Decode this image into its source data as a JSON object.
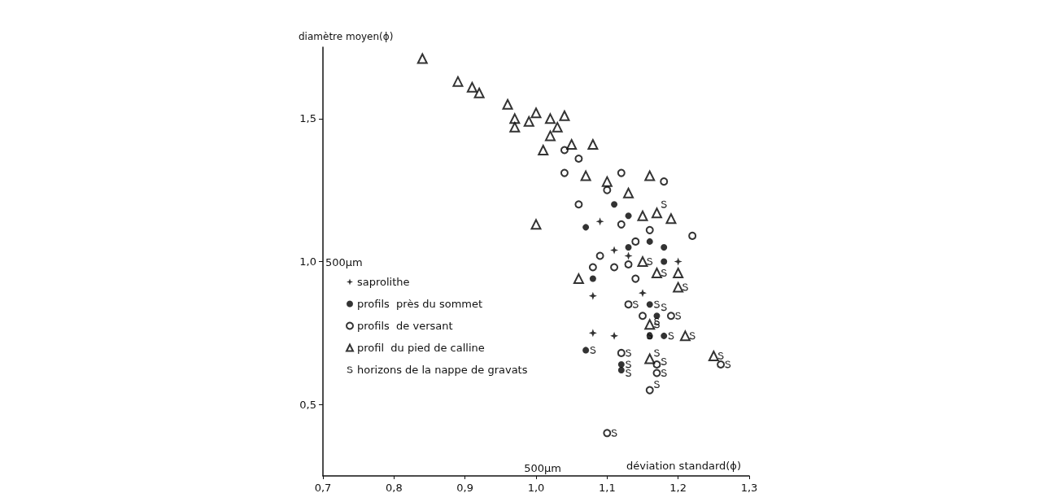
{
  "chart_data": {
    "type": "scatter",
    "xlabel": "déviation standard(ϕ)",
    "ylabel": "diamètre moyen(ϕ)",
    "xlim": [
      0.7,
      1.3
    ],
    "ylim": [
      0.25,
      1.75
    ],
    "xticks": [
      {
        "value": 0.7,
        "label": "0,7"
      },
      {
        "value": 0.8,
        "label": "0,8"
      },
      {
        "value": 0.9,
        "label": "0,9"
      },
      {
        "value": 1.0,
        "label": "1,0"
      },
      {
        "value": 1.1,
        "label": "1,1"
      },
      {
        "value": 1.2,
        "label": "1,2"
      },
      {
        "value": 1.3,
        "label": "1,3"
      }
    ],
    "yticks": [
      {
        "value": 0.5,
        "label": "0,5"
      },
      {
        "value": 1.0,
        "label": "1,0"
      },
      {
        "value": 1.5,
        "label": "1,5"
      }
    ],
    "annotations": [
      "500µm",
      "500µm"
    ],
    "grid": false,
    "legend": "left",
    "series": [
      {
        "name": "saprolithe",
        "color": "#000000",
        "marker": "star",
        "x": [
          1.09,
          1.11,
          1.13,
          1.2,
          1.15,
          1.08,
          1.08,
          1.11
        ],
        "values": [
          1.14,
          1.04,
          1.02,
          1.0,
          0.89,
          0.88,
          0.75,
          0.74
        ]
      },
      {
        "name": "profils  près du sommet",
        "color": "#000000",
        "marker": "circle",
        "x": [
          1.07,
          1.11,
          1.13,
          1.13,
          1.16,
          1.18,
          1.18,
          1.08,
          1.16,
          1.17,
          1.16,
          1.18,
          1.07,
          1.12,
          1.12
        ],
        "values": [
          1.12,
          1.2,
          1.16,
          1.05,
          1.07,
          1.05,
          1.0,
          0.94,
          0.85,
          0.81,
          0.74,
          0.74,
          0.69,
          0.64,
          0.62
        ]
      },
      {
        "name": "profils  de versant",
        "color": "#000000",
        "marker": "open-circle",
        "x": [
          1.04,
          1.06,
          1.04,
          1.06,
          1.12,
          1.1,
          1.18,
          1.12,
          1.16,
          1.22,
          1.14,
          1.09,
          1.08,
          1.11,
          1.13,
          1.14,
          1.13,
          1.19,
          1.15,
          1.12,
          1.17,
          1.17,
          1.16,
          1.26,
          1.1
        ],
        "values": [
          1.39,
          1.36,
          1.31,
          1.2,
          1.31,
          1.25,
          1.28,
          1.13,
          1.11,
          1.09,
          1.07,
          1.02,
          0.98,
          0.98,
          0.99,
          0.94,
          0.85,
          0.81,
          0.81,
          0.68,
          0.64,
          0.61,
          0.55,
          0.64,
          0.4
        ]
      },
      {
        "name": "profil  du pied de calline",
        "color": "#000000",
        "marker": "triangle",
        "x": [
          0.84,
          0.89,
          0.91,
          0.92,
          0.96,
          0.97,
          0.97,
          1.0,
          0.99,
          1.02,
          1.04,
          1.03,
          1.02,
          1.01,
          1.05,
          1.08,
          1.07,
          1.0,
          1.16,
          1.1,
          1.13,
          1.15,
          1.17,
          1.19,
          1.15,
          1.17,
          1.2,
          1.2,
          1.06,
          1.16,
          1.21,
          1.16,
          1.25
        ],
        "values": [
          1.71,
          1.63,
          1.61,
          1.59,
          1.55,
          1.5,
          1.47,
          1.52,
          1.49,
          1.5,
          1.51,
          1.47,
          1.44,
          1.39,
          1.41,
          1.41,
          1.3,
          1.13,
          1.3,
          1.28,
          1.24,
          1.16,
          1.17,
          1.15,
          1.0,
          0.96,
          0.96,
          0.91,
          0.94,
          0.78,
          0.74,
          0.66,
          0.67
        ]
      },
      {
        "name": "horizons de la nappe de gravats",
        "color": "#000000",
        "marker": "s",
        "x": [
          1.18,
          1.16,
          1.18,
          1.21,
          1.14,
          1.17,
          1.18,
          1.2,
          1.17,
          1.17,
          1.16,
          1.19,
          1.22,
          1.08,
          1.13,
          1.13,
          1.13,
          1.17,
          1.18,
          1.18,
          1.17,
          1.26,
          1.27,
          1.11
        ],
        "values": [
          1.2,
          1.0,
          0.96,
          0.91,
          0.85,
          0.85,
          0.84,
          0.81,
          0.79,
          0.78,
          0.74,
          0.74,
          0.74,
          0.69,
          0.68,
          0.64,
          0.61,
          0.68,
          0.65,
          0.61,
          0.57,
          0.67,
          0.64,
          0.4
        ]
      }
    ]
  }
}
